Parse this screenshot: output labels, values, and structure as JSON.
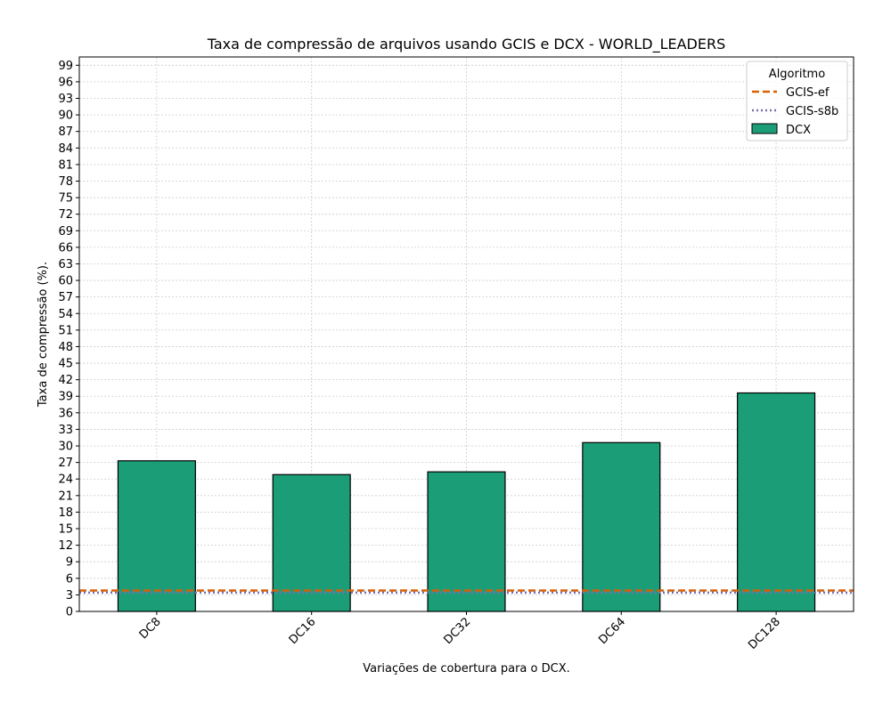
{
  "chart_data": {
    "type": "bar",
    "title": "Taxa de compressão de arquivos usando GCIS e DCX -  WORLD_LEADERS",
    "xlabel": "Variações de cobertura para o DCX.",
    "ylabel": "Taxa de compressão (%).",
    "categories": [
      "DC8",
      "DC16",
      "DC32",
      "DC64",
      "DC128"
    ],
    "series": [
      {
        "name": "DCX",
        "values": [
          27.3,
          24.8,
          25.3,
          30.6,
          39.6
        ],
        "color": "#1b9e77"
      }
    ],
    "reference_lines": [
      {
        "name": "GCIS-ef",
        "value": 3.8,
        "color": "#d95f02",
        "style": "dashed"
      },
      {
        "name": "GCIS-s8b",
        "value": 3.4,
        "color": "#7570b3",
        "style": "dotted"
      }
    ],
    "ylim": [
      0,
      100.5
    ],
    "yticks": [
      0,
      3,
      6,
      9,
      12,
      15,
      18,
      21,
      24,
      27,
      30,
      33,
      36,
      39,
      42,
      45,
      48,
      51,
      54,
      57,
      60,
      63,
      66,
      69,
      72,
      75,
      78,
      81,
      84,
      87,
      90,
      93,
      96,
      99
    ],
    "grid": true,
    "legend": {
      "title": "Algoritmo",
      "position": "top-right"
    }
  }
}
